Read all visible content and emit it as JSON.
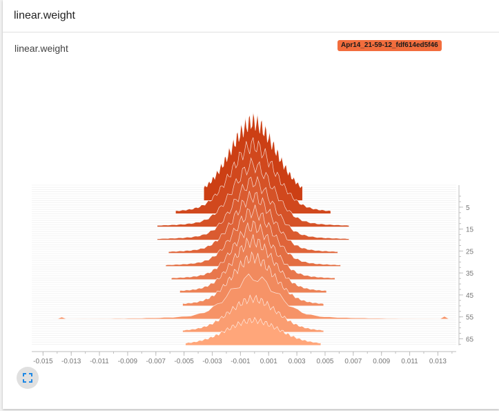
{
  "card": {
    "header_title": "linear.weight",
    "plot_title": "linear.weight",
    "run_label": "Apr14_21-59-12_fdf614ed5f46"
  },
  "icons": {
    "fullscreen": "fullscreen-icon"
  },
  "colors": {
    "badge": "#f26d3d",
    "ridge_oldest": "#cc3f14",
    "ridge_newest": "#ffa67a",
    "axis": "#bdbdbd",
    "tick_text": "#757575"
  },
  "chart_data": {
    "type": "ridgeline-histogram",
    "title": "linear.weight",
    "x_ticks": [
      "-0.015",
      "-0.013",
      "-0.011",
      "-0.009",
      "-0.007",
      "-0.005",
      "-0.003",
      "-0.001",
      "0.001",
      "0.003",
      "0.005",
      "0.007",
      "0.009",
      "0.011",
      "0.013"
    ],
    "x_range": [
      -0.0158,
      0.0143
    ],
    "y_ticks": [
      "5",
      "15",
      "25",
      "35",
      "45",
      "55",
      "65"
    ],
    "step_range": [
      0,
      68
    ],
    "center": -0.0001,
    "series": [
      {
        "step": 2,
        "h": 0.95,
        "w": 0.003,
        "tail": 0.0035,
        "peak": 1.0
      },
      {
        "step": 8,
        "h": 0.82,
        "w": 0.0028,
        "tail": 0.0055,
        "peak": 0.45
      },
      {
        "step": 14,
        "h": 0.74,
        "w": 0.0026,
        "tail": 0.0068,
        "peak": 0.35
      },
      {
        "step": 20,
        "h": 0.7,
        "w": 0.0025,
        "tail": 0.0068,
        "peak": 0.3
      },
      {
        "step": 26,
        "h": 0.68,
        "w": 0.0025,
        "tail": 0.006,
        "peak": 0.25
      },
      {
        "step": 32,
        "h": 0.66,
        "w": 0.0025,
        "tail": 0.0062,
        "peak": 0.25
      },
      {
        "step": 38,
        "h": 0.64,
        "w": 0.0025,
        "tail": 0.0058,
        "peak": 0.25
      },
      {
        "step": 44,
        "h": 0.62,
        "w": 0.0026,
        "tail": 0.0052,
        "peak": 0.2
      },
      {
        "step": 50,
        "h": 0.58,
        "w": 0.0027,
        "tail": 0.005,
        "peak": 0.25
      },
      {
        "step": 56,
        "h": 0.5,
        "w": 0.003,
        "tail": 0.0142,
        "peak": 0.3
      },
      {
        "step": 62,
        "h": 0.4,
        "w": 0.003,
        "tail": 0.005,
        "peak": 0.3
      },
      {
        "step": 68,
        "h": 0.3,
        "w": 0.0034,
        "tail": 0.0048,
        "peak": 0.25
      }
    ]
  }
}
